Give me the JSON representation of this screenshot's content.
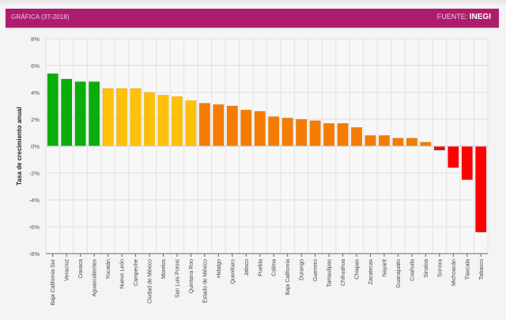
{
  "header": {
    "title": "GRÁFICA (3T-2018)",
    "source_prefix": "FUENTE:",
    "source_name": "INEGI"
  },
  "colors": {
    "header_bg": "#ae1d6d",
    "green": "#0aad0a",
    "yellow": "#ffc107",
    "orange": "#f57c00",
    "dark_red": "#d41414",
    "red": "#ff0000"
  },
  "chart_data": {
    "type": "bar",
    "title": "",
    "xlabel": "",
    "ylabel": "Tasa de crecimiento anual",
    "ylim": [
      -8,
      8
    ],
    "yticks": [
      8,
      6,
      4,
      2,
      0,
      -2,
      -4,
      -6,
      -8
    ],
    "ytick_labels": [
      "8%",
      "6%",
      "4%",
      "2%",
      "0%",
      "-2%",
      "-4%",
      "-6%",
      "-8%"
    ],
    "grid": true,
    "categories": [
      "Baja California Sur",
      "Veracruz",
      "Oaxaca",
      "Aguascalientes",
      "Yucatán",
      "Nuevo León",
      "Campeche",
      "Ciudad de México",
      "Morelos",
      "San Luis Potosí",
      "Quintana Roo",
      "Estado de México",
      "Hidalgo",
      "Querétaro",
      "Jalisco",
      "Puebla",
      "Colima",
      "Baja California",
      "Durango",
      "Guerrero",
      "Tamaulipas",
      "Chihuahua",
      "Chiapas",
      "Zacatecas",
      "Nayarit",
      "Guanajuato",
      "Coahuila",
      "Sinaloa",
      "Sonora",
      "Michoacán",
      "Tlaxcala",
      "Tabasco"
    ],
    "values": [
      5.4,
      5.0,
      4.8,
      4.8,
      4.3,
      4.3,
      4.3,
      4.0,
      3.8,
      3.7,
      3.4,
      3.2,
      3.1,
      3.0,
      2.7,
      2.6,
      2.2,
      2.1,
      2.0,
      1.9,
      1.7,
      1.7,
      1.4,
      0.8,
      0.8,
      0.6,
      0.6,
      0.3,
      -0.3,
      -1.6,
      -2.5,
      -6.4
    ],
    "bar_color_groups": [
      "green",
      "green",
      "green",
      "green",
      "yellow",
      "yellow",
      "yellow",
      "yellow",
      "yellow",
      "yellow",
      "yellow",
      "orange",
      "orange",
      "orange",
      "orange",
      "orange",
      "orange",
      "orange",
      "orange",
      "orange",
      "orange",
      "orange",
      "orange",
      "orange",
      "orange",
      "orange",
      "orange",
      "orange",
      "dark_red",
      "red",
      "red",
      "red"
    ]
  }
}
